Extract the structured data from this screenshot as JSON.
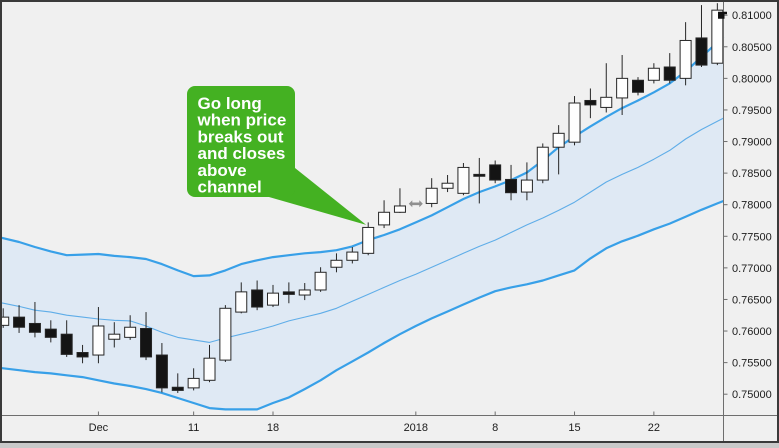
{
  "callout": {
    "lines": [
      "Go long",
      "when price",
      "breaks out",
      "and closes",
      "above",
      "channel"
    ],
    "bg_color": "#44b122",
    "text_color": "#ffffff",
    "points_to_candle_index": 23
  },
  "chart_data": {
    "type": "candlestick",
    "description_visible": "daily candlestick chart with price channel bands (upper, middle, lower) and shaded channel",
    "y_axis": {
      "side": "right",
      "min": 0.75,
      "max": 0.81,
      "step": 0.005,
      "labels": [
        "0.81000",
        "0.80500",
        "0.80000",
        "0.79500",
        "0.79000",
        "0.78500",
        "0.78000",
        "0.77500",
        "0.77000",
        "0.76500",
        "0.76000",
        "0.75500",
        "0.75000"
      ],
      "last_price_marker": 0.81
    },
    "x_axis": {
      "ticks": [
        {
          "label": "Dec",
          "candle_index": 6
        },
        {
          "label": "11",
          "candle_index": 12
        },
        {
          "label": "18",
          "candle_index": 17
        },
        {
          "label": "2018",
          "candle_index": 26
        },
        {
          "label": "8",
          "candle_index": 31
        },
        {
          "label": "15",
          "candle_index": 36
        },
        {
          "label": "22",
          "candle_index": 41
        }
      ]
    },
    "candles_format": [
      "open",
      "high",
      "low",
      "close"
    ],
    "candles": [
      [
        0.7609,
        0.7636,
        0.7605,
        0.7622
      ],
      [
        0.7622,
        0.7641,
        0.7597,
        0.7606
      ],
      [
        0.7612,
        0.7646,
        0.759,
        0.7598
      ],
      [
        0.7603,
        0.7617,
        0.7582,
        0.759
      ],
      [
        0.7595,
        0.7617,
        0.7559,
        0.7563
      ],
      [
        0.7566,
        0.7578,
        0.7549,
        0.7559
      ],
      [
        0.7562,
        0.7638,
        0.7549,
        0.7608
      ],
      [
        0.7587,
        0.7614,
        0.7574,
        0.7595
      ],
      [
        0.759,
        0.7625,
        0.7586,
        0.7606
      ],
      [
        0.7604,
        0.763,
        0.7554,
        0.7559
      ],
      [
        0.7562,
        0.7581,
        0.7503,
        0.751
      ],
      [
        0.7511,
        0.7533,
        0.7502,
        0.7506
      ],
      [
        0.751,
        0.7541,
        0.7506,
        0.7525
      ],
      [
        0.7522,
        0.7578,
        0.7519,
        0.7557
      ],
      [
        0.7554,
        0.7641,
        0.7551,
        0.7636
      ],
      [
        0.763,
        0.7677,
        0.7628,
        0.7662
      ],
      [
        0.7665,
        0.768,
        0.7633,
        0.7638
      ],
      [
        0.7641,
        0.7673,
        0.7638,
        0.766
      ],
      [
        0.7662,
        0.7677,
        0.7644,
        0.7658
      ],
      [
        0.7657,
        0.7676,
        0.7649,
        0.7665
      ],
      [
        0.7665,
        0.7701,
        0.7662,
        0.7693
      ],
      [
        0.7701,
        0.7723,
        0.7693,
        0.7712
      ],
      [
        0.7712,
        0.7733,
        0.7707,
        0.7725
      ],
      [
        0.7723,
        0.7772,
        0.772,
        0.7764
      ],
      [
        0.7768,
        0.7807,
        0.7763,
        0.7788
      ],
      [
        0.7788,
        0.7826,
        0.7787,
        0.7798
      ],
      [
        0.7799,
        0.7807,
        0.7796,
        0.7804
      ],
      [
        0.7802,
        0.7842,
        0.7796,
        0.7826
      ],
      [
        0.7826,
        0.7847,
        0.782,
        0.7834
      ],
      [
        0.7818,
        0.7866,
        0.7815,
        0.7859
      ],
      [
        0.7848,
        0.7874,
        0.7802,
        0.7845
      ],
      [
        0.7863,
        0.787,
        0.7834,
        0.7839
      ],
      [
        0.784,
        0.7863,
        0.7807,
        0.7819
      ],
      [
        0.782,
        0.7867,
        0.7807,
        0.7839
      ],
      [
        0.7839,
        0.7897,
        0.7834,
        0.7891
      ],
      [
        0.7891,
        0.7926,
        0.7848,
        0.7913
      ],
      [
        0.7899,
        0.7972,
        0.7894,
        0.7961
      ],
      [
        0.7965,
        0.7984,
        0.7937,
        0.7958
      ],
      [
        0.7954,
        0.8024,
        0.7946,
        0.797
      ],
      [
        0.7969,
        0.8037,
        0.7942,
        0.8
      ],
      [
        0.7997,
        0.8002,
        0.7973,
        0.7978
      ],
      [
        0.7997,
        0.8024,
        0.7992,
        0.8016
      ],
      [
        0.8018,
        0.804,
        0.7992,
        0.7997
      ],
      [
        0.8,
        0.8089,
        0.7989,
        0.806
      ],
      [
        0.8064,
        0.8116,
        0.8018,
        0.8021
      ],
      [
        0.8024,
        0.8119,
        0.8021,
        0.8108
      ]
    ],
    "bands": {
      "upper": [
        0.7747,
        0.7741,
        0.7733,
        0.7726,
        0.772,
        0.7721,
        0.7722,
        0.7719,
        0.7717,
        0.7714,
        0.7706,
        0.7696,
        0.7687,
        0.7688,
        0.7696,
        0.7706,
        0.7712,
        0.7717,
        0.772,
        0.7723,
        0.7725,
        0.7728,
        0.7734,
        0.7744,
        0.7752,
        0.7761,
        0.7772,
        0.7783,
        0.7796,
        0.7809,
        0.782,
        0.7829,
        0.7839,
        0.7851,
        0.787,
        0.7891,
        0.7908,
        0.7924,
        0.7939,
        0.7953,
        0.7965,
        0.7978,
        0.7992,
        0.8011,
        0.8034,
        0.8057
      ],
      "middle": [
        0.7644,
        0.7639,
        0.7633,
        0.763,
        0.7625,
        0.7622,
        0.7619,
        0.7617,
        0.7616,
        0.7608,
        0.7598,
        0.759,
        0.7586,
        0.7582,
        0.7589,
        0.7595,
        0.7601,
        0.7608,
        0.7616,
        0.7622,
        0.7628,
        0.7636,
        0.7647,
        0.7658,
        0.7669,
        0.768,
        0.769,
        0.7701,
        0.7712,
        0.7723,
        0.7734,
        0.7744,
        0.7756,
        0.7768,
        0.7779,
        0.7791,
        0.7804,
        0.782,
        0.7836,
        0.7848,
        0.7859,
        0.7872,
        0.7886,
        0.7904,
        0.7919,
        0.7932
      ],
      "lower": [
        0.7541,
        0.7538,
        0.7535,
        0.7533,
        0.753,
        0.7527,
        0.7522,
        0.7517,
        0.7513,
        0.7508,
        0.7502,
        0.7494,
        0.7486,
        0.7478,
        0.7476,
        0.7476,
        0.7476,
        0.7486,
        0.7495,
        0.7508,
        0.7522,
        0.7538,
        0.7552,
        0.7566,
        0.7581,
        0.7595,
        0.7608,
        0.762,
        0.7631,
        0.7642,
        0.7653,
        0.7663,
        0.7669,
        0.7674,
        0.768,
        0.7688,
        0.7696,
        0.7715,
        0.7731,
        0.7742,
        0.7751,
        0.7761,
        0.777,
        0.7781,
        0.7792,
        0.7802
      ]
    },
    "special_marker": {
      "candle_index": 26,
      "shape": "double-arrow",
      "color": "#8f8f8f"
    },
    "colors": {
      "background": "#f0f0f0",
      "channel_fill": "#dfe9f4",
      "band_line": "#38a0e8",
      "band_mid_line": "#5fade8",
      "bull_fill": "#fefefe",
      "bear_fill": "#141414",
      "candle_stroke": "#262626",
      "axis_line": "#6e6e6e",
      "frame": "#3a3a3a",
      "text": "#1c1c1c",
      "price_marker": "#111111"
    }
  }
}
